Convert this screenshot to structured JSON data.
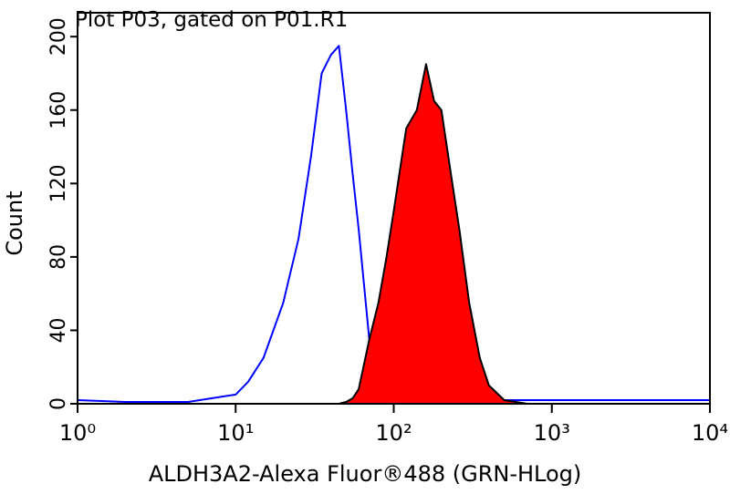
{
  "chart_data": {
    "type": "line",
    "title": "Plot P03, gated on P01.R1",
    "xlabel": "ALDH3A2-Alexa Fluor®488 (GRN-HLog)",
    "ylabel": "Count",
    "xscale": "log",
    "x": [
      1,
      2,
      5,
      10,
      12,
      15,
      20,
      25,
      30,
      35,
      40,
      45,
      50,
      55,
      60,
      70,
      80,
      90,
      100,
      120,
      140,
      160,
      180,
      200,
      230,
      260,
      300,
      350,
      400,
      500,
      700,
      1000,
      2000,
      5000,
      10000
    ],
    "series": [
      {
        "color": "#0000ff",
        "filled": false,
        "values": [
          2,
          1,
          1,
          5,
          12,
          25,
          55,
          90,
          135,
          180,
          190,
          195,
          160,
          125,
          95,
          35,
          6,
          2,
          1,
          1,
          1,
          1,
          1,
          1,
          1,
          1,
          1,
          1,
          1,
          2,
          2,
          2,
          2,
          2,
          2
        ]
      },
      {
        "color": "#ff0000",
        "edgecolor": "#000000",
        "filled": true,
        "values": [
          0,
          0,
          0,
          0,
          0,
          0,
          0,
          0,
          0,
          0,
          0,
          0,
          1,
          3,
          8,
          35,
          55,
          80,
          105,
          150,
          160,
          185,
          165,
          160,
          125,
          95,
          55,
          25,
          10,
          2,
          0,
          0,
          0,
          0,
          0
        ]
      }
    ],
    "xlim": [
      1,
      10000
    ],
    "xticks": [
      {
        "value": 1,
        "label": "10⁰"
      },
      {
        "value": 10,
        "label": "10¹"
      },
      {
        "value": 100,
        "label": "10²"
      },
      {
        "value": 1000,
        "label": "10³"
      },
      {
        "value": 10000,
        "label": "10⁴"
      }
    ],
    "ylim": [
      0,
      213
    ],
    "yticks": [
      0,
      40,
      80,
      120,
      160,
      200
    ],
    "grid": false
  }
}
